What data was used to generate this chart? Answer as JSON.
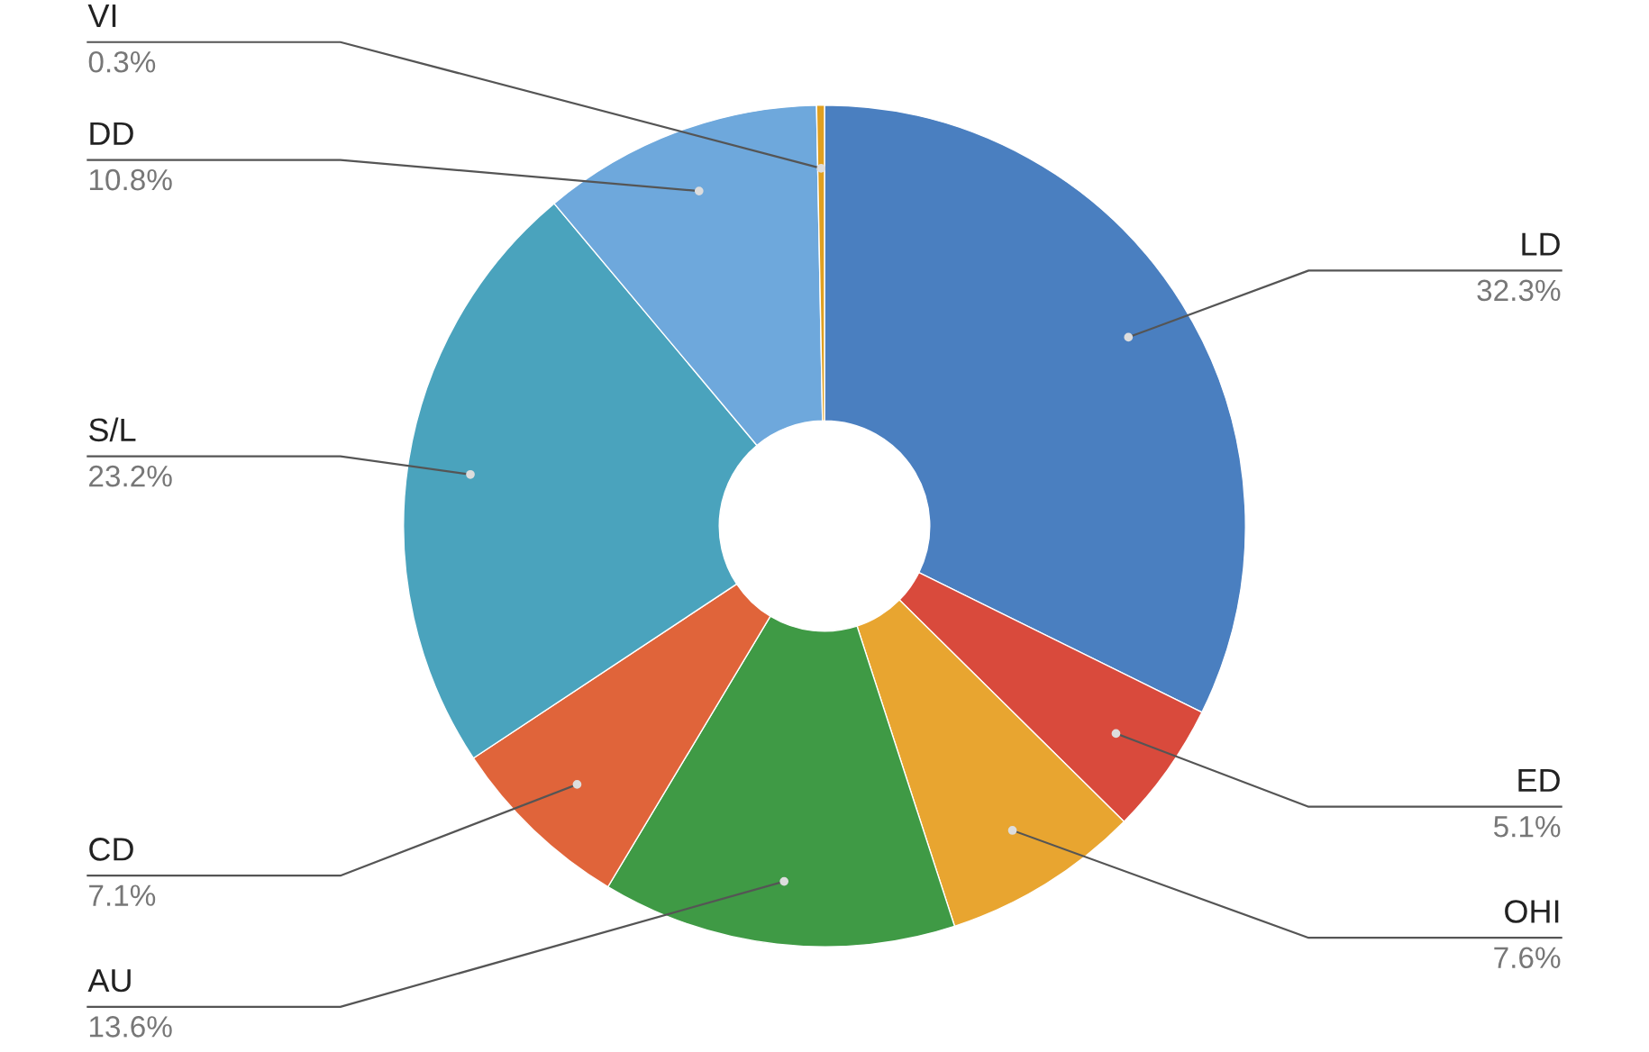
{
  "chart_data": {
    "type": "donut",
    "categories": [
      "LD",
      "ED",
      "OHI",
      "AU",
      "CD",
      "S/L",
      "DD",
      "VI"
    ],
    "values": [
      32.3,
      5.1,
      7.6,
      13.6,
      7.1,
      23.2,
      10.8,
      0.3
    ],
    "value_labels": [
      "32.3%",
      "5.1%",
      "7.6%",
      "13.6%",
      "7.1%",
      "23.2%",
      "10.8%",
      "0.3%"
    ],
    "colors": [
      "#4a7fc0",
      "#d94a3c",
      "#e8a530",
      "#3f9a45",
      "#e0643a",
      "#4aa3bd",
      "#6ea8dc",
      "#e0a020"
    ],
    "legend": false
  }
}
